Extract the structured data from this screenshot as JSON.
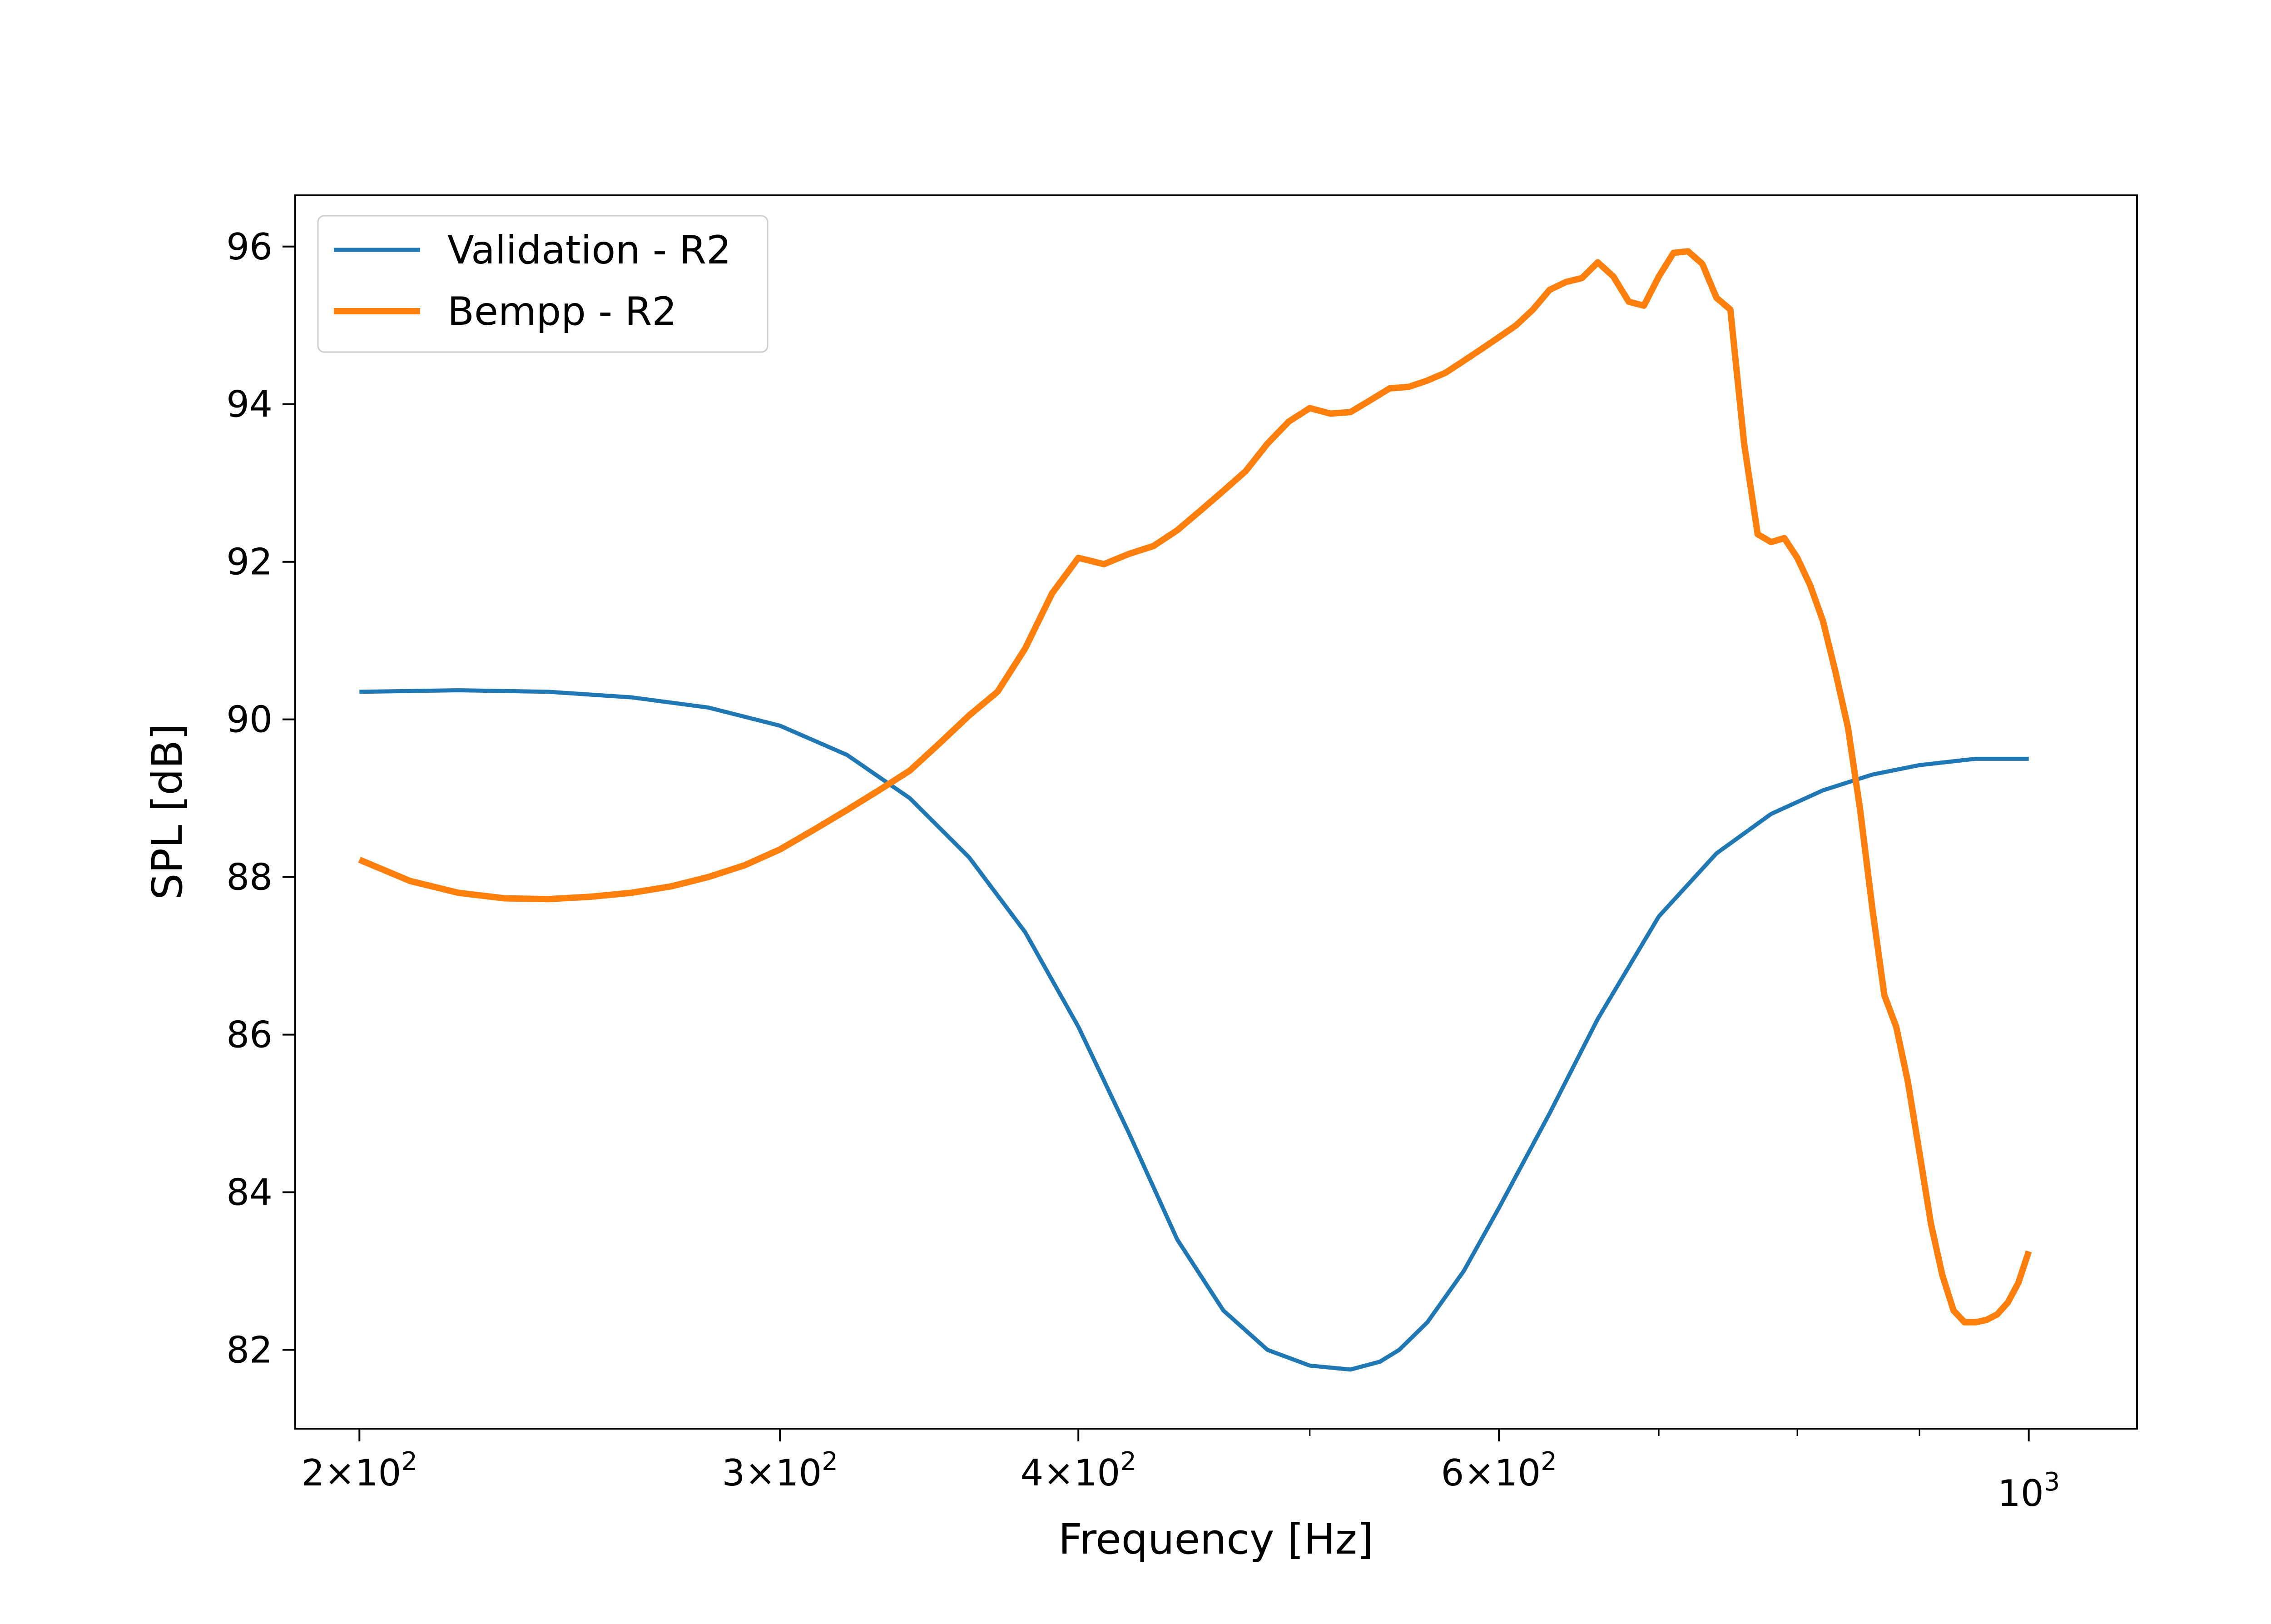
{
  "chart_data": {
    "type": "line",
    "title": "",
    "xlabel": "Frequency [Hz]",
    "ylabel": "SPL [dB]",
    "xscale": "log",
    "xlim": [
      188,
      1110
    ],
    "ylim": [
      81.0,
      96.65
    ],
    "grid": false,
    "legend_position": "top-left",
    "x_ticks": [
      {
        "value": 200,
        "mantissa": "2",
        "times": "×",
        "base": "10",
        "exp": "2"
      },
      {
        "value": 300,
        "mantissa": "3",
        "times": "×",
        "base": "10",
        "exp": "2"
      },
      {
        "value": 400,
        "mantissa": "4",
        "times": "×",
        "base": "10",
        "exp": "2"
      },
      {
        "value": 600,
        "mantissa": "6",
        "times": "×",
        "base": "10",
        "exp": "2"
      },
      {
        "value": 1000,
        "mantissa": "",
        "times": "",
        "base": "10",
        "exp": "3"
      }
    ],
    "x_minor_ticks": [
      500,
      700,
      800,
      900
    ],
    "y_ticks": [
      {
        "value": 82,
        "label": "82"
      },
      {
        "value": 84,
        "label": "84"
      },
      {
        "value": 86,
        "label": "86"
      },
      {
        "value": 88,
        "label": "88"
      },
      {
        "value": 90,
        "label": "90"
      },
      {
        "value": 92,
        "label": "92"
      },
      {
        "value": 94,
        "label": "94"
      },
      {
        "value": 96,
        "label": "96"
      }
    ],
    "series": [
      {
        "name": "Validation - R2",
        "color": "#1f77b4",
        "x": [
          200,
          220,
          240,
          260,
          280,
          300,
          320,
          340,
          360,
          380,
          400,
          420,
          440,
          460,
          480,
          500,
          520,
          535,
          545,
          560,
          580,
          600,
          630,
          660,
          700,
          740,
          780,
          820,
          860,
          900,
          950,
          1000
        ],
        "y": [
          90.35,
          90.37,
          90.35,
          90.28,
          90.15,
          89.92,
          89.55,
          89.0,
          88.25,
          87.3,
          86.1,
          84.75,
          83.4,
          82.5,
          82.0,
          81.8,
          81.75,
          81.85,
          82.0,
          82.35,
          83.0,
          83.8,
          85.0,
          86.2,
          87.5,
          88.3,
          88.8,
          89.1,
          89.3,
          89.42,
          89.5,
          89.5
        ]
      },
      {
        "name": "Bempp - R2",
        "color": "#ff7f0e",
        "x": [
          200,
          210,
          220,
          230,
          240,
          250,
          260,
          270,
          280,
          290,
          300,
          310,
          320,
          330,
          340,
          350,
          360,
          370,
          380,
          390,
          400,
          410,
          420,
          430,
          440,
          450,
          460,
          470,
          480,
          490,
          500,
          510,
          520,
          530,
          540,
          550,
          560,
          570,
          580,
          590,
          600,
          610,
          620,
          630,
          640,
          650,
          660,
          670,
          680,
          690,
          700,
          710,
          720,
          730,
          740,
          750,
          760,
          770,
          780,
          790,
          800,
          810,
          820,
          830,
          840,
          850,
          860,
          870,
          880,
          890,
          900,
          910,
          920,
          930,
          940,
          950,
          960,
          970,
          980,
          990,
          1000
        ],
        "y": [
          88.22,
          87.95,
          87.8,
          87.73,
          87.72,
          87.75,
          87.8,
          87.88,
          88.0,
          88.15,
          88.35,
          88.6,
          88.85,
          89.1,
          89.35,
          89.7,
          90.05,
          90.35,
          90.9,
          91.6,
          92.05,
          91.97,
          92.1,
          92.2,
          92.4,
          92.65,
          92.9,
          93.15,
          93.5,
          93.78,
          93.95,
          93.88,
          93.9,
          94.05,
          94.2,
          94.22,
          94.3,
          94.4,
          94.55,
          94.7,
          94.85,
          95.0,
          95.2,
          95.45,
          95.55,
          95.6,
          95.8,
          95.62,
          95.3,
          95.25,
          95.62,
          95.92,
          95.94,
          95.78,
          95.35,
          95.2,
          93.5,
          92.35,
          92.25,
          92.3,
          92.05,
          91.7,
          91.25,
          90.6,
          89.9,
          88.85,
          87.6,
          86.5,
          86.1,
          85.4,
          84.5,
          83.6,
          82.95,
          82.5,
          82.35,
          82.35,
          82.38,
          82.45,
          82.6,
          82.85,
          83.25
        ]
      }
    ]
  }
}
